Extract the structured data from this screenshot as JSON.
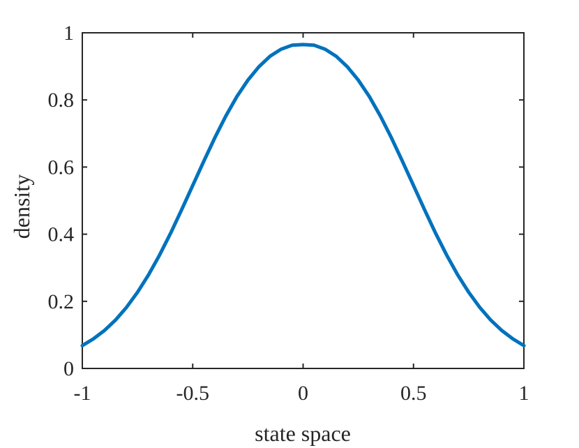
{
  "chart_data": {
    "type": "line",
    "title": "",
    "xlabel": "state space",
    "ylabel": "density",
    "xlim": [
      -1,
      1
    ],
    "ylim": [
      0,
      1
    ],
    "xticks": [
      -1,
      -0.5,
      0,
      0.5,
      1
    ],
    "xtick_labels": [
      "-1",
      "-0.5",
      "0",
      "0.5",
      "1"
    ],
    "yticks": [
      0,
      0.2,
      0.4,
      0.6,
      0.8,
      1
    ],
    "ytick_labels": [
      "0",
      "0.2",
      "0.4",
      "0.6",
      "0.8",
      "1"
    ],
    "grid": false,
    "series": [
      {
        "color": "#0072BD",
        "x": [
          -1,
          -0.95,
          -0.9,
          -0.85,
          -0.8,
          -0.75,
          -0.7,
          -0.65,
          -0.6,
          -0.55,
          -0.5,
          -0.45,
          -0.4,
          -0.35,
          -0.3,
          -0.25,
          -0.2,
          -0.15,
          -0.1,
          -0.05,
          0,
          0.05,
          0.1,
          0.15,
          0.2,
          0.25,
          0.3,
          0.35,
          0.4,
          0.45,
          0.5,
          0.55,
          0.6,
          0.65,
          0.7,
          0.75,
          0.8,
          0.85,
          0.9,
          0.95,
          1
        ],
        "y": [
          0.068,
          0.088,
          0.113,
          0.144,
          0.182,
          0.227,
          0.279,
          0.338,
          0.403,
          0.473,
          0.545,
          0.617,
          0.687,
          0.752,
          0.81,
          0.859,
          0.899,
          0.93,
          0.951,
          0.963,
          0.965,
          0.963,
          0.951,
          0.93,
          0.899,
          0.859,
          0.81,
          0.752,
          0.687,
          0.617,
          0.545,
          0.473,
          0.403,
          0.338,
          0.279,
          0.227,
          0.182,
          0.144,
          0.113,
          0.088,
          0.068
        ]
      }
    ]
  }
}
